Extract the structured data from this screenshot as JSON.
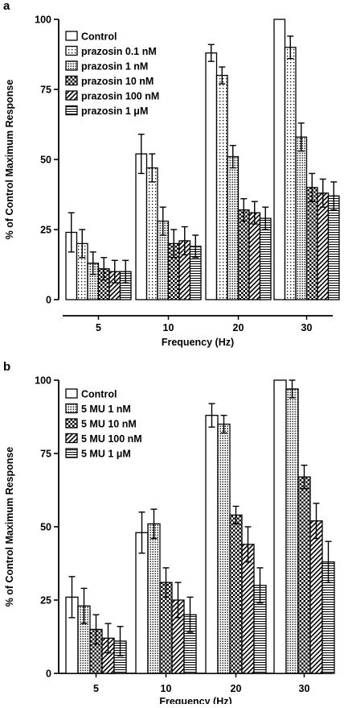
{
  "chart_data": [
    {
      "panel_label": "a",
      "type": "bar",
      "ylabel": "% of Control Maximum Response",
      "xlabel": "Frequency (Hz)",
      "ylim": [
        0,
        100
      ],
      "yticks": [
        "0",
        "25",
        "50",
        "75",
        "100"
      ],
      "categories": [
        "5",
        "10",
        "20",
        "30"
      ],
      "legend_position": "top-left",
      "series": [
        {
          "name": "Control",
          "pattern": "white",
          "values": [
            24,
            52,
            88,
            100
          ],
          "errors": [
            7,
            7,
            3,
            0
          ]
        },
        {
          "name": "prazosin 0.1 nM",
          "pattern": "dots-sparse",
          "values": [
            20,
            47,
            80,
            90
          ],
          "errors": [
            5,
            5,
            3,
            4
          ]
        },
        {
          "name": "prazosin 1 nM",
          "pattern": "dots-dense",
          "values": [
            13,
            28,
            51,
            58
          ],
          "errors": [
            4,
            5,
            4,
            5
          ]
        },
        {
          "name": "prazosin 10 nM",
          "pattern": "checker",
          "values": [
            11,
            20,
            32,
            40
          ],
          "errors": [
            4,
            5,
            4,
            5
          ]
        },
        {
          "name": "prazosin 100 nM",
          "pattern": "diagonal",
          "values": [
            10,
            21,
            31,
            38
          ],
          "errors": [
            4,
            5,
            4,
            5
          ]
        },
        {
          "name": "prazosin 1 μM",
          "pattern": "horizontal",
          "values": [
            10,
            19,
            29,
            37
          ],
          "errors": [
            4,
            4,
            4,
            5
          ]
        }
      ]
    },
    {
      "panel_label": "b",
      "type": "bar",
      "ylabel": "% of Control Maximum Response",
      "xlabel": "Frequency (Hz)",
      "ylim": [
        0,
        100
      ],
      "yticks": [
        "0",
        "25",
        "50",
        "75",
        "100"
      ],
      "categories": [
        "5",
        "10",
        "20",
        "30"
      ],
      "legend_position": "top-left",
      "series": [
        {
          "name": "Control",
          "pattern": "white",
          "values": [
            26,
            48,
            88,
            100
          ],
          "errors": [
            7,
            7,
            4,
            0
          ]
        },
        {
          "name": "5 MU 1 nM",
          "pattern": "dots-dense",
          "values": [
            23,
            51,
            85,
            97
          ],
          "errors": [
            6,
            5,
            3,
            3
          ]
        },
        {
          "name": "5 MU 10 nM",
          "pattern": "checker",
          "values": [
            15,
            31,
            54,
            67
          ],
          "errors": [
            5,
            5,
            3,
            4
          ]
        },
        {
          "name": "5 MU 100 nM",
          "pattern": "diagonal",
          "values": [
            12,
            25,
            44,
            52
          ],
          "errors": [
            5,
            6,
            6,
            6
          ]
        },
        {
          "name": "5 MU 1 μM",
          "pattern": "horizontal",
          "values": [
            11,
            20,
            30,
            38
          ],
          "errors": [
            5,
            6,
            6,
            7
          ]
        }
      ]
    }
  ]
}
